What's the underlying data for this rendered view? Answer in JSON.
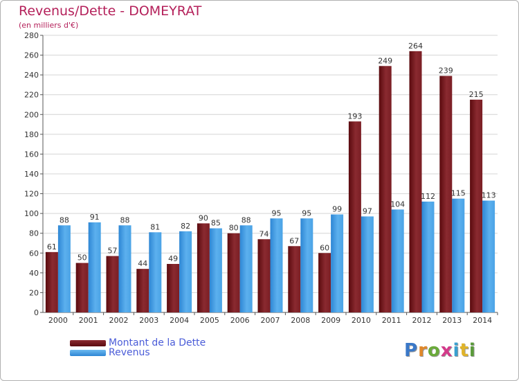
{
  "chart_data": {
    "type": "bar",
    "title": "Revenus/Dette - DOMEYRAT",
    "subtitle": "(en milliers d'€)",
    "categories": [
      "2000",
      "2001",
      "2002",
      "2003",
      "2004",
      "2005",
      "2006",
      "2007",
      "2008",
      "2009",
      "2010",
      "2011",
      "2012",
      "2013",
      "2014"
    ],
    "series": [
      {
        "name": "Montant de la Dette",
        "color": "#6e0f12",
        "values": [
          61,
          50,
          57,
          44,
          49,
          90,
          80,
          74,
          67,
          60,
          193,
          249,
          264,
          239,
          215
        ]
      },
      {
        "name": "Revenus",
        "color": "#4aa3e6",
        "values": [
          88,
          91,
          88,
          81,
          82,
          85,
          88,
          95,
          95,
          99,
          97,
          104,
          112,
          115,
          113
        ]
      }
    ],
    "ylim": [
      0,
      280
    ],
    "yticks": [
      0,
      20,
      40,
      60,
      80,
      100,
      120,
      140,
      160,
      180,
      200,
      220,
      240,
      260,
      280
    ],
    "grid": true,
    "legend_position": "bottom-left"
  },
  "logo": {
    "text": "Proxiti",
    "icon": "proxiti-logo"
  }
}
